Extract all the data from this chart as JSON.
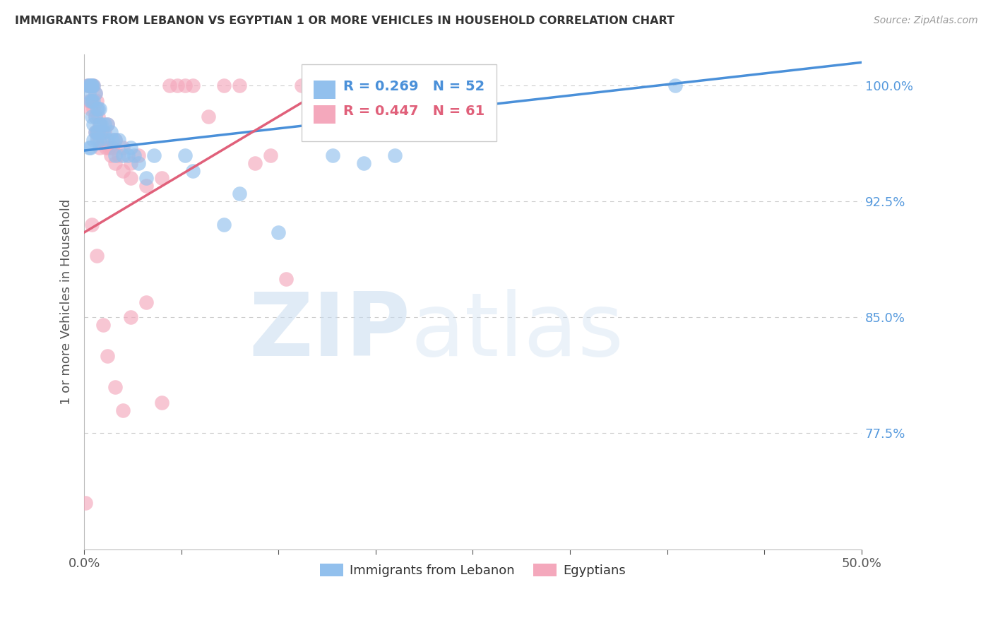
{
  "title": "IMMIGRANTS FROM LEBANON VS EGYPTIAN 1 OR MORE VEHICLES IN HOUSEHOLD CORRELATION CHART",
  "source": "Source: ZipAtlas.com",
  "ylabel": "1 or more Vehicles in Household",
  "xlim": [
    0.0,
    50.0
  ],
  "ylim": [
    70.0,
    102.0
  ],
  "yticks": [
    77.5,
    85.0,
    92.5,
    100.0
  ],
  "xtick_positions": [
    0.0,
    6.25,
    12.5,
    18.75,
    25.0,
    31.25,
    37.5,
    43.75,
    50.0
  ],
  "xtick_labels": [
    "0.0%",
    "",
    "",
    "",
    "",
    "",
    "",
    "",
    "50.0%"
  ],
  "ytick_labels": [
    "77.5%",
    "85.0%",
    "92.5%",
    "100.0%"
  ],
  "watermark_zip": "ZIP",
  "watermark_atlas": "atlas",
  "legend_blue_label": "Immigrants from Lebanon",
  "legend_pink_label": "Egyptians",
  "blue_R": "R = 0.269",
  "blue_N": "N = 52",
  "pink_R": "R = 0.447",
  "pink_N": "N = 61",
  "blue_color": "#92C0ED",
  "pink_color": "#F4A8BC",
  "blue_line_color": "#4A90D9",
  "pink_line_color": "#E0607A",
  "grid_color": "#CCCCCC",
  "axis_color": "#BBBBBB",
  "title_color": "#333333",
  "ytick_color": "#5599DD",
  "source_color": "#999999",
  "blue_scatter_x": [
    0.2,
    0.3,
    0.3,
    0.4,
    0.4,
    0.5,
    0.5,
    0.5,
    0.5,
    0.6,
    0.6,
    0.6,
    0.7,
    0.7,
    0.7,
    0.8,
    0.8,
    0.9,
    0.9,
    1.0,
    1.0,
    1.0,
    1.1,
    1.2,
    1.3,
    1.5,
    1.5,
    1.7,
    1.8,
    2.0,
    2.0,
    2.2,
    2.5,
    2.8,
    3.0,
    3.2,
    3.5,
    4.0,
    4.5,
    6.5,
    7.0,
    9.0,
    10.0,
    12.5,
    16.0,
    18.0,
    20.0,
    38.0,
    0.3,
    0.4,
    0.6,
    0.8
  ],
  "blue_scatter_y": [
    100.0,
    100.0,
    99.5,
    100.0,
    99.0,
    100.0,
    100.0,
    99.0,
    98.0,
    100.0,
    99.0,
    97.5,
    99.5,
    98.0,
    97.0,
    98.5,
    97.0,
    98.5,
    97.0,
    98.5,
    97.5,
    96.5,
    97.5,
    97.0,
    97.5,
    97.5,
    96.5,
    97.0,
    96.5,
    96.5,
    95.5,
    96.5,
    95.5,
    95.5,
    96.0,
    95.5,
    95.0,
    94.0,
    95.5,
    95.5,
    94.5,
    91.0,
    93.0,
    90.5,
    95.5,
    95.0,
    95.5,
    100.0,
    96.0,
    96.0,
    96.5,
    96.5
  ],
  "pink_scatter_x": [
    0.1,
    0.2,
    0.3,
    0.3,
    0.4,
    0.4,
    0.5,
    0.5,
    0.6,
    0.6,
    0.7,
    0.7,
    0.7,
    0.8,
    0.8,
    0.9,
    0.9,
    1.0,
    1.0,
    1.1,
    1.2,
    1.3,
    1.4,
    1.5,
    1.6,
    1.7,
    1.8,
    2.0,
    2.0,
    2.2,
    2.5,
    2.5,
    3.0,
    3.0,
    3.5,
    4.0,
    5.0,
    5.5,
    6.0,
    6.5,
    7.0,
    8.0,
    9.0,
    10.0,
    11.0,
    12.0,
    13.0,
    14.0,
    15.5,
    16.0,
    16.5,
    17.0,
    0.5,
    0.8,
    1.2,
    1.5,
    2.0,
    2.5,
    3.0,
    4.0,
    5.0
  ],
  "pink_scatter_y": [
    73.0,
    100.0,
    100.0,
    99.0,
    100.0,
    98.5,
    100.0,
    99.0,
    100.0,
    98.5,
    99.5,
    98.0,
    97.0,
    99.0,
    97.0,
    98.0,
    96.5,
    97.5,
    96.0,
    97.0,
    96.5,
    97.0,
    96.0,
    97.5,
    96.0,
    95.5,
    96.0,
    96.5,
    95.0,
    95.5,
    96.0,
    94.5,
    95.0,
    94.0,
    95.5,
    93.5,
    94.0,
    100.0,
    100.0,
    100.0,
    100.0,
    98.0,
    100.0,
    100.0,
    95.0,
    95.5,
    87.5,
    100.0,
    100.0,
    99.5,
    100.0,
    97.0,
    91.0,
    89.0,
    84.5,
    82.5,
    80.5,
    79.0,
    85.0,
    86.0,
    79.5
  ],
  "blue_trend_x": [
    0.0,
    50.0
  ],
  "blue_trend_y": [
    95.8,
    101.5
  ],
  "pink_trend_x": [
    0.0,
    17.5
  ],
  "pink_trend_y": [
    90.5,
    101.0
  ]
}
